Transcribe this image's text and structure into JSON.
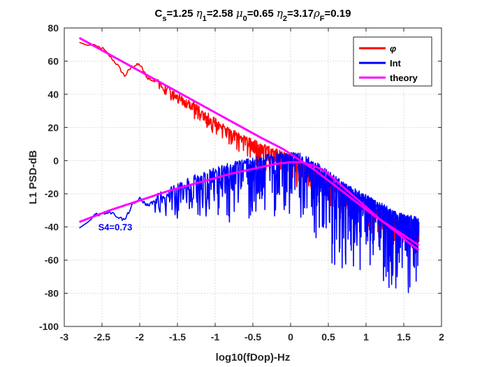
{
  "chart_data": {
    "type": "line",
    "title": "C_s=1.25 η_1=2.58 μ_0=0.65 η_2=3.17ρ_F=0.19",
    "title_parts": [
      {
        "t": "C",
        "k": "n"
      },
      {
        "t": "s",
        "k": "sub"
      },
      {
        "t": "=1.25 ",
        "k": "n"
      },
      {
        "t": "η",
        "k": "g"
      },
      {
        "t": "1",
        "k": "sub"
      },
      {
        "t": "=2.58 ",
        "k": "n"
      },
      {
        "t": "μ",
        "k": "g"
      },
      {
        "t": "0",
        "k": "sub"
      },
      {
        "t": "=0.65 ",
        "k": "n"
      },
      {
        "t": "η",
        "k": "g"
      },
      {
        "t": "2",
        "k": "sub"
      },
      {
        "t": "=3.17",
        "k": "n"
      },
      {
        "t": "ρ",
        "k": "g"
      },
      {
        "t": "F",
        "k": "sub"
      },
      {
        "t": "=0.19",
        "k": "n"
      }
    ],
    "xlabel": "log10(fDop)-Hz",
    "ylabel": "L1 PSD-dB",
    "xlim": [
      -3,
      2
    ],
    "ylim": [
      -100,
      80
    ],
    "xticks": [
      "-3",
      "-2.5",
      "-2",
      "-1.5",
      "-1",
      "-0.5",
      "0",
      "0.5",
      "1",
      "1.5",
      "2"
    ],
    "yticks": [
      "80",
      "60",
      "40",
      "20",
      "0",
      "-20",
      "-40",
      "-60",
      "-80",
      "-100"
    ],
    "grid": true,
    "legend_position": "top-right",
    "annotation": {
      "text": "S4=0.73",
      "x": -2.55,
      "y": -42,
      "color": "#0000ff"
    },
    "series": [
      {
        "name": "φ",
        "color": "#ff0000",
        "x_start": -2.8,
        "x_end": 1.7,
        "anchors": [
          [
            -2.8,
            71
          ],
          [
            -2.5,
            68
          ],
          [
            -2.3,
            58
          ],
          [
            -2.2,
            51
          ],
          [
            -2.1,
            57
          ],
          [
            -2.0,
            58
          ],
          [
            -1.9,
            50
          ],
          [
            -1.7,
            45
          ],
          [
            -1.5,
            38
          ],
          [
            -1.3,
            33
          ],
          [
            -1.1,
            26
          ],
          [
            -0.9,
            20
          ],
          [
            -0.7,
            14
          ],
          [
            -0.5,
            10
          ],
          [
            -0.3,
            6
          ],
          [
            -0.1,
            3
          ],
          [
            0.1,
            -1
          ],
          [
            0.3,
            -7
          ],
          [
            0.5,
            -13
          ],
          [
            0.7,
            -19
          ],
          [
            0.9,
            -26
          ],
          [
            1.1,
            -31
          ],
          [
            1.3,
            -36
          ],
          [
            1.5,
            -40
          ],
          [
            1.7,
            -43
          ]
        ],
        "noise_upper": 3,
        "noise_lower": 12
      },
      {
        "name": "Int",
        "color": "#0000ff",
        "x_start": -2.8,
        "x_end": 1.7,
        "anchors": [
          [
            -2.8,
            -40
          ],
          [
            -2.6,
            -33
          ],
          [
            -2.4,
            -31
          ],
          [
            -2.2,
            -36
          ],
          [
            -2.1,
            -27
          ],
          [
            -2.0,
            -23
          ],
          [
            -1.9,
            -27
          ],
          [
            -1.7,
            -22
          ],
          [
            -1.5,
            -18
          ],
          [
            -1.3,
            -13
          ],
          [
            -1.1,
            -10
          ],
          [
            -0.9,
            -6
          ],
          [
            -0.7,
            -4
          ],
          [
            -0.5,
            -2
          ],
          [
            -0.3,
            0
          ],
          [
            -0.1,
            1
          ],
          [
            0.1,
            1
          ],
          [
            0.3,
            -3
          ],
          [
            0.5,
            -10
          ],
          [
            0.7,
            -17
          ],
          [
            0.9,
            -22
          ],
          [
            1.1,
            -27
          ],
          [
            1.3,
            -32
          ],
          [
            1.5,
            -36
          ],
          [
            1.7,
            -38
          ]
        ],
        "noise_upper": 4,
        "noise_lower": 38
      },
      {
        "name": "theory",
        "color": "#ff00ff",
        "curves": [
          {
            "id": "phase",
            "points": [
              [
                -2.8,
                74
              ],
              [
                -2.4,
                64
              ],
              [
                -2.0,
                54
              ],
              [
                -1.6,
                44
              ],
              [
                -1.2,
                34
              ],
              [
                -0.8,
                24
              ],
              [
                -0.4,
                14
              ],
              [
                -0.1,
                7
              ],
              [
                0.1,
                1
              ],
              [
                0.3,
                -5
              ],
              [
                0.5,
                -12
              ],
              [
                0.7,
                -19
              ],
              [
                0.9,
                -26
              ],
              [
                1.1,
                -33
              ],
              [
                1.3,
                -39
              ],
              [
                1.5,
                -45
              ],
              [
                1.7,
                -51
              ]
            ]
          },
          {
            "id": "intensity",
            "points": [
              [
                -2.8,
                -37
              ],
              [
                -2.4,
                -30
              ],
              [
                -2.0,
                -24
              ],
              [
                -1.6,
                -18
              ],
              [
                -1.2,
                -13
              ],
              [
                -0.8,
                -8
              ],
              [
                -0.5,
                -5
              ],
              [
                -0.2,
                -2
              ],
              [
                0.0,
                -1
              ],
              [
                0.15,
                -1
              ],
              [
                0.3,
                -3
              ],
              [
                0.45,
                -6
              ],
              [
                0.6,
                -12
              ],
              [
                0.8,
                -20
              ],
              [
                1.0,
                -28
              ],
              [
                1.2,
                -36
              ],
              [
                1.4,
                -43
              ],
              [
                1.55,
                -49
              ],
              [
                1.7,
                -54
              ]
            ]
          }
        ]
      }
    ]
  }
}
